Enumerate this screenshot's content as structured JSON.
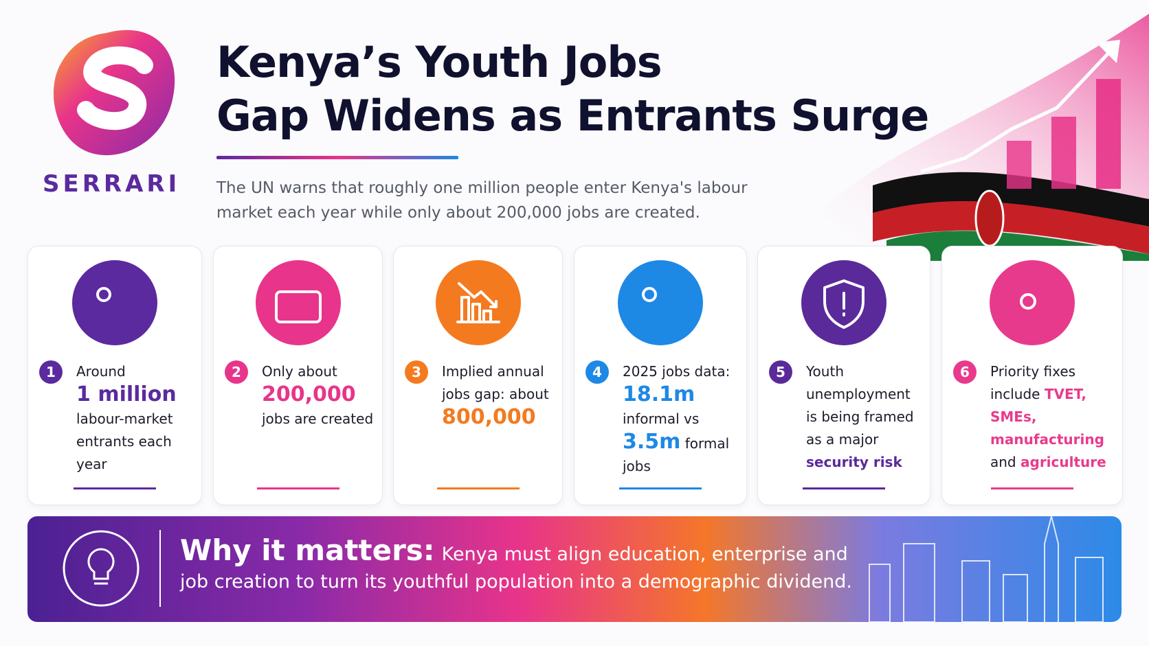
{
  "brand": "SERRARI",
  "title": [
    "Kenya’s Youth Jobs",
    "Gap Widens as Entrants Surge"
  ],
  "subtitle": "The UN warns that roughly one million people enter Kenya's labour market each year while only about 200,000 jobs are created.",
  "cards": [
    {
      "number": "1",
      "color": "#5b2a9e",
      "segments": [
        {
          "text": "Around"
        },
        {
          "text": "1 million",
          "emphasis": "figure"
        },
        {
          "text": "labour-market entrants each year"
        }
      ]
    },
    {
      "number": "2",
      "color": "#e8348a",
      "segments": [
        {
          "text": "Only about"
        },
        {
          "text": "200,000",
          "emphasis": "figure"
        },
        {
          "text": "jobs are created"
        }
      ]
    },
    {
      "number": "3",
      "color": "#f47a1f",
      "segments": [
        {
          "text": "Implied annual jobs gap: about"
        },
        {
          "text": "800,000",
          "emphasis": "figure"
        }
      ]
    },
    {
      "number": "4",
      "color": "#1e88e5",
      "segments": [
        {
          "text": "2025 jobs data:"
        },
        {
          "text": "18.1m",
          "emphasis": "figure"
        },
        {
          "text": "informal vs"
        },
        {
          "text": "3.5m",
          "emphasis": "figure"
        },
        {
          "text": "formal jobs"
        }
      ]
    },
    {
      "number": "5",
      "color": "#5a2a9a",
      "segments": [
        {
          "text": "Youth unemployment is being framed as a major"
        },
        {
          "text": "security risk",
          "emphasis": "accent"
        }
      ]
    },
    {
      "number": "6",
      "color": "#e83a8c",
      "segments": [
        {
          "text": "Priority fixes include"
        },
        {
          "text": "TVET, SMEs, manufacturing",
          "emphasis": "accent"
        },
        {
          "text": "and"
        },
        {
          "text": "agriculture",
          "emphasis": "accent"
        }
      ]
    }
  ],
  "banner": {
    "heading": "Why it matters:",
    "text": "Kenya must align education, enterprise and job creation to turn its youthful population into a demographic dividend."
  }
}
